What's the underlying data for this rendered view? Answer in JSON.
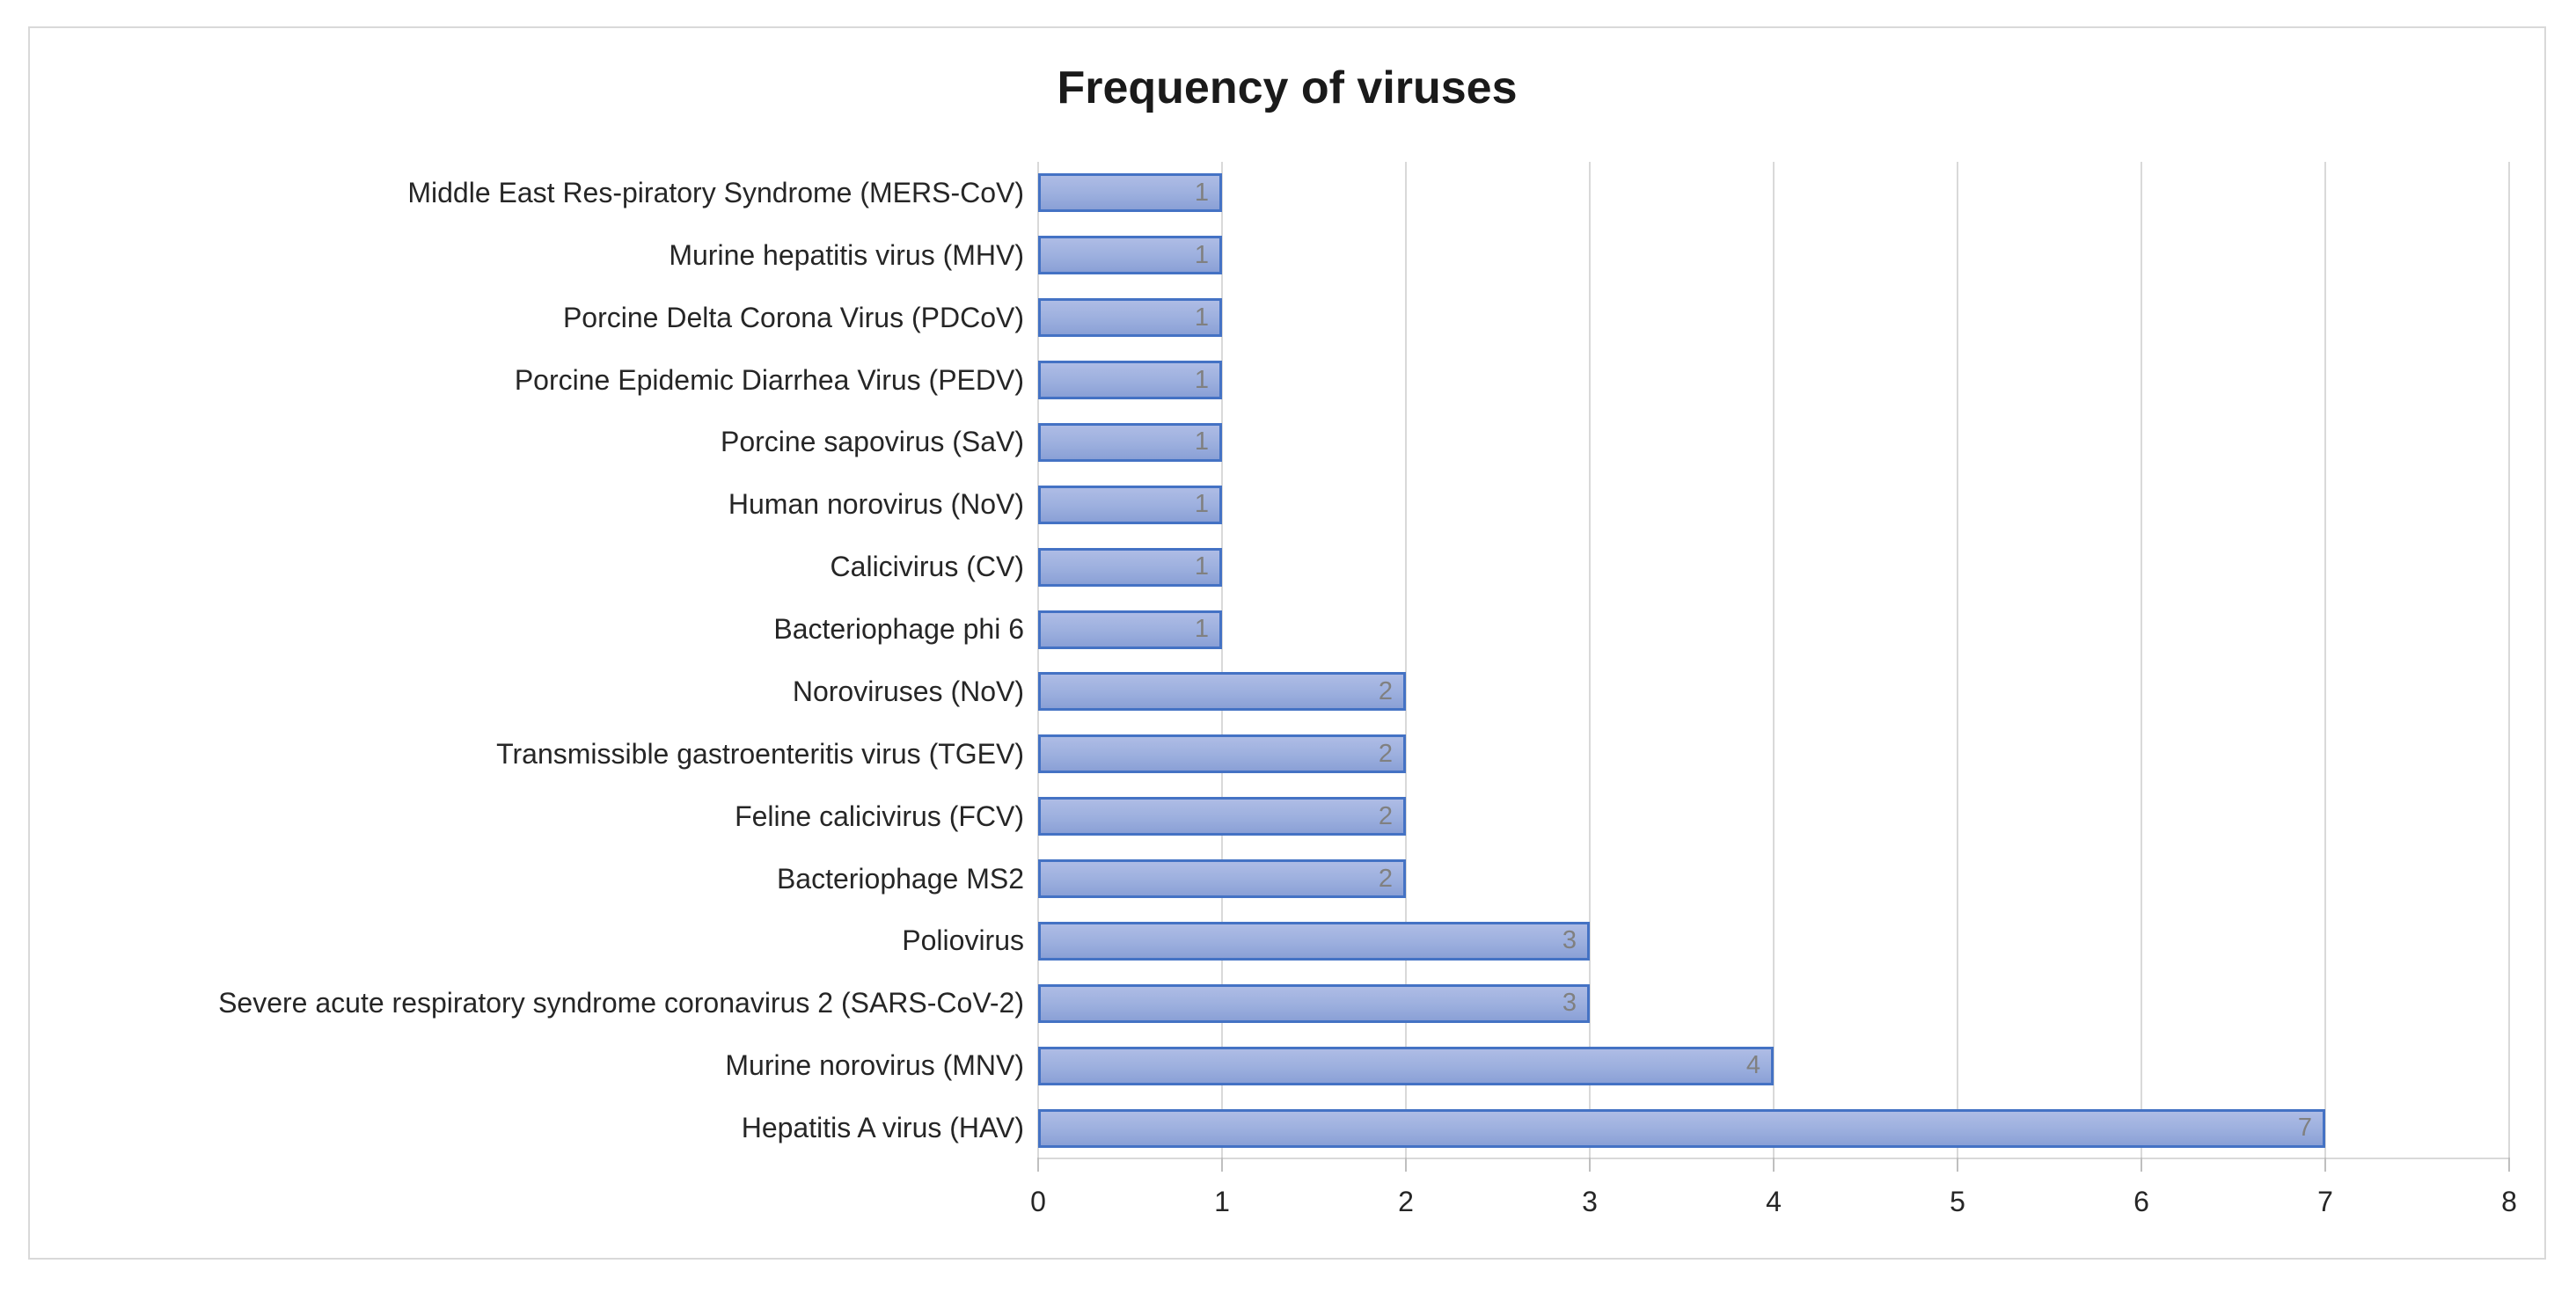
{
  "chart_data": {
    "type": "bar",
    "orientation": "horizontal",
    "title": "Frequency of viruses",
    "categories": [
      "Middle East Res-piratory Syndrome (MERS-CoV)",
      "Murine hepatitis virus (MHV)",
      "Porcine Delta Corona Virus (PDCoV)",
      "Porcine Epidemic Diarrhea Virus (PEDV)",
      "Porcine sapovirus (SaV)",
      "Human norovirus (NoV)",
      "Calicivirus (CV)",
      "Bacteriophage phi 6",
      "Noroviruses (NoV)",
      "Transmissible gastroenteritis virus (TGEV)",
      "Feline calicivirus (FCV)",
      "Bacteriophage MS2",
      "Poliovirus",
      "Severe acute respiratory syndrome coronavirus 2 (SARS-CoV-2)",
      "Murine norovirus (MNV)",
      "Hepatitis A virus (HAV)"
    ],
    "values": [
      1,
      1,
      1,
      1,
      1,
      1,
      1,
      1,
      2,
      2,
      2,
      2,
      3,
      3,
      4,
      7
    ],
    "data_labels": [
      "1",
      "1",
      "1",
      "1",
      "1",
      "1",
      "1",
      "1",
      "2",
      "2",
      "2",
      "2",
      "3",
      "3",
      "4",
      "7"
    ],
    "data_label_position": "inside-end",
    "xlabel": "",
    "ylabel": "",
    "xlim": [
      0,
      8
    ],
    "x_ticks": [
      "0",
      "1",
      "2",
      "3",
      "4",
      "5",
      "6",
      "7",
      "8"
    ],
    "grid": "vertical-gridlines-on",
    "legend": "none",
    "colors": {
      "bar_fill_top": "#aebce5",
      "bar_fill_mid": "#9cafde",
      "bar_fill_bottom": "#8aa0d6",
      "bar_border": "#4472c4",
      "gridline": "#d9d9d9",
      "tick_mark": "#bfbfbf",
      "data_label": "#808080",
      "axis_label": "#262626",
      "title": "#1a1a1a",
      "frame_border": "#d9d9d9",
      "background": "#ffffff"
    }
  }
}
